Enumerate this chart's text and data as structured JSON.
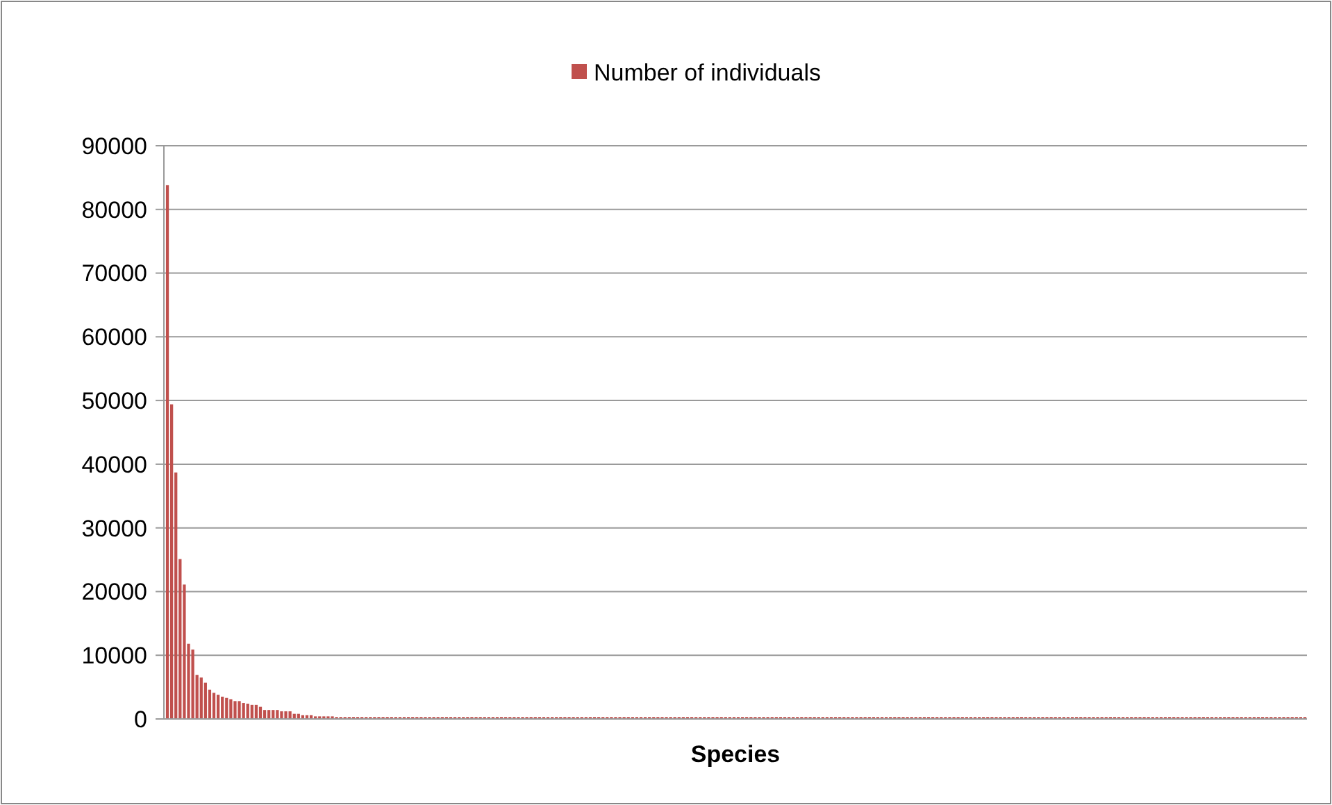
{
  "chart_data": {
    "type": "bar",
    "xlabel": "Species",
    "legend": "top",
    "grid": "y",
    "ylim": [
      0,
      90000
    ],
    "yticks": [
      0,
      10000,
      20000,
      30000,
      40000,
      50000,
      60000,
      70000,
      80000,
      90000
    ],
    "categories": [
      null,
      null,
      null,
      null,
      null,
      null,
      null,
      null,
      null,
      null,
      null,
      null,
      null,
      null,
      null,
      null,
      null,
      null,
      null,
      null,
      null,
      null,
      null,
      null,
      null,
      null,
      null,
      null,
      null,
      null,
      null,
      null,
      null,
      null,
      null,
      null,
      null,
      null,
      null,
      null,
      null,
      null,
      null,
      null,
      null,
      null,
      null,
      null,
      null,
      null,
      null,
      null,
      null,
      null,
      null,
      null,
      null,
      null,
      null,
      null,
      null,
      null,
      null,
      null,
      null,
      null,
      null,
      null,
      null,
      null,
      null,
      null,
      null,
      null,
      null,
      null,
      null,
      null,
      null,
      null,
      null,
      null,
      null,
      null,
      null,
      null,
      null,
      null,
      null,
      null,
      null,
      null,
      null,
      null,
      null,
      null,
      null,
      null,
      null,
      null,
      null,
      null,
      null,
      null,
      null,
      null,
      null,
      null,
      null,
      null,
      null,
      null,
      null,
      null,
      null,
      null,
      null,
      null,
      null,
      null,
      null,
      null,
      null,
      null,
      null,
      null,
      null,
      null,
      null,
      null,
      null,
      null,
      null,
      null,
      null,
      null,
      null,
      null,
      null,
      null,
      null,
      null,
      null,
      null,
      null,
      null,
      null,
      null,
      null,
      null,
      null,
      null,
      null,
      null,
      null,
      null,
      null,
      null,
      null,
      null,
      null,
      null,
      null,
      null,
      null,
      null,
      null,
      null,
      null,
      null,
      null,
      null,
      null,
      null,
      null,
      null,
      null,
      null,
      null,
      null,
      null,
      null,
      null,
      null,
      null,
      null,
      null,
      null,
      null,
      null,
      null,
      null,
      null,
      null,
      null,
      null,
      null,
      null,
      null,
      null,
      null,
      null,
      null,
      null,
      null,
      null,
      null,
      null,
      null,
      null,
      null,
      null,
      null,
      null,
      null,
      null,
      null,
      null,
      null,
      null,
      null,
      null,
      null,
      null,
      null,
      null,
      null,
      null,
      null,
      null,
      null,
      null,
      null,
      null,
      null,
      null,
      null,
      null,
      null,
      null,
      null,
      null,
      null,
      null,
      null,
      null,
      null,
      null,
      null,
      null,
      null,
      null,
      null,
      null,
      null,
      null,
      null,
      null,
      null,
      null,
      null,
      null,
      null,
      null,
      null,
      null,
      null,
      null,
      null,
      null
    ],
    "series": [
      {
        "name": "Number of individuals",
        "color": "#c0504d",
        "values": [
          83800,
          49400,
          38700,
          25100,
          21100,
          11800,
          10900,
          6900,
          6500,
          5700,
          4600,
          4100,
          3800,
          3500,
          3300,
          3100,
          2800,
          2800,
          2500,
          2400,
          2200,
          2200,
          1900,
          1400,
          1400,
          1400,
          1400,
          1200,
          1200,
          1200,
          800,
          800,
          600,
          600,
          600,
          400,
          400,
          400,
          400,
          400,
          300,
          300,
          300,
          300,
          300,
          300,
          300,
          300,
          300,
          300,
          300,
          300,
          300,
          300,
          300,
          300,
          300,
          300,
          300,
          300,
          300,
          300,
          300,
          300,
          300,
          300,
          300,
          300,
          300,
          300,
          300,
          300,
          300,
          300,
          300,
          300,
          300,
          300,
          300,
          300,
          300,
          300,
          300,
          300,
          300,
          300,
          300,
          300,
          300,
          300,
          300,
          300,
          300,
          300,
          300,
          300,
          300,
          300,
          300,
          300,
          300,
          300,
          300,
          300,
          300,
          300,
          300,
          300,
          300,
          300,
          300,
          300,
          300,
          300,
          300,
          300,
          300,
          300,
          300,
          300,
          300,
          300,
          300,
          300,
          300,
          300,
          300,
          300,
          300,
          300,
          300,
          300,
          300,
          300,
          300,
          300,
          300,
          300,
          300,
          300,
          300,
          300,
          300,
          300,
          300,
          300,
          300,
          300,
          300,
          300,
          300,
          300,
          300,
          300,
          300,
          300,
          300,
          300,
          300,
          300,
          300,
          300,
          300,
          300,
          300,
          300,
          300,
          300,
          300,
          300,
          300,
          300,
          300,
          300,
          300,
          300,
          300,
          300,
          300,
          300,
          300,
          300,
          300,
          300,
          300,
          300,
          300,
          300,
          300,
          300,
          300,
          300,
          300,
          300,
          300,
          300,
          300,
          300,
          300,
          300,
          300,
          300,
          300,
          300,
          300,
          300,
          300,
          300,
          300,
          300,
          300,
          300,
          300,
          300,
          300,
          300,
          300,
          300,
          300,
          300,
          300,
          300,
          300,
          300,
          300,
          300,
          300,
          300,
          300,
          300,
          300,
          300,
          300,
          300,
          300,
          300,
          300,
          300,
          300,
          300,
          300,
          300,
          300,
          300,
          300,
          300,
          300,
          300,
          300,
          300,
          300,
          300,
          300,
          300,
          300,
          300,
          300,
          300,
          300,
          300,
          300,
          300,
          300,
          300,
          300,
          300,
          300,
          300,
          300,
          300
        ]
      }
    ]
  }
}
